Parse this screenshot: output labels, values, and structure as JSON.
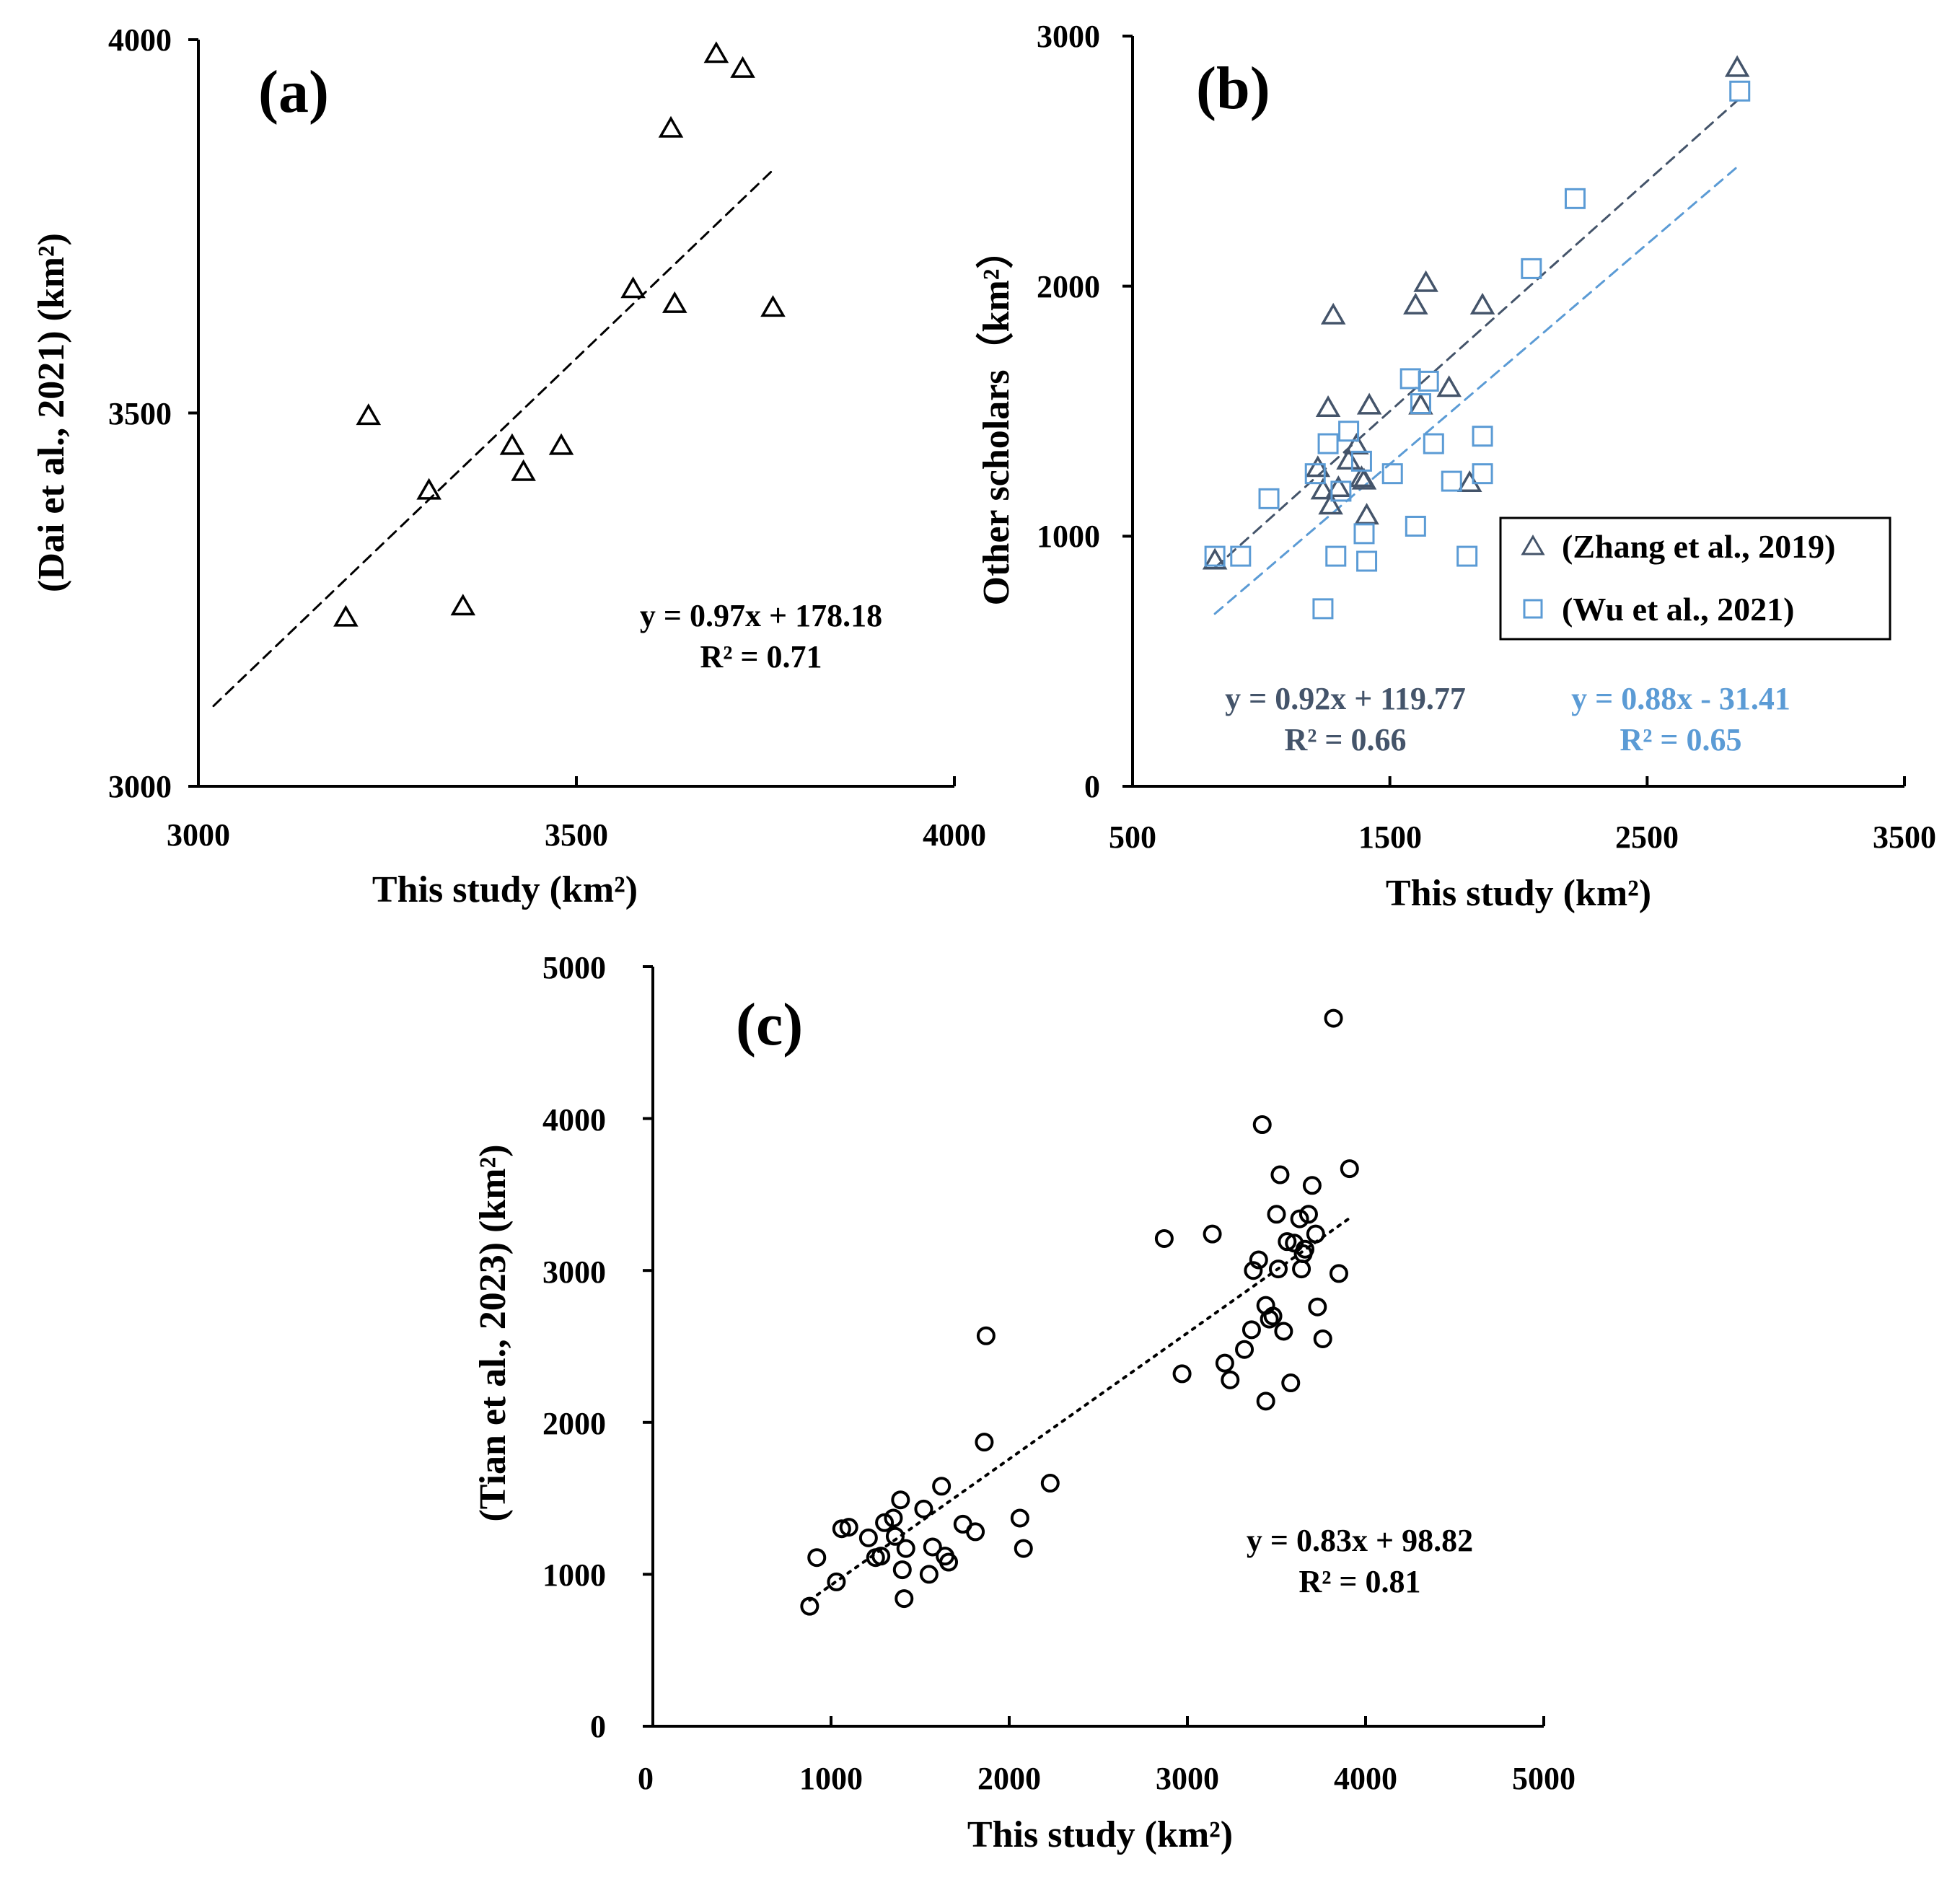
{
  "chart_data": [
    {
      "id": "a",
      "type": "scatter",
      "panel_label": "(a)",
      "xlabel": "This study (km²)",
      "ylabel": "(Dai et al., 2021) (km²)",
      "xlim": [
        3000,
        4000
      ],
      "ylim": [
        3000,
        4000
      ],
      "xticks": [
        "3000",
        "3500",
        "4000"
      ],
      "yticks": [
        "3000",
        "3500",
        "4000"
      ],
      "grid": false,
      "series": [
        {
          "name": "Dai et al., 2021",
          "marker": "triangle",
          "color": "#000000",
          "x": [
            3195,
            3225,
            3305,
            3350,
            3415,
            3430,
            3480,
            3575,
            3625,
            3630,
            3685,
            3720,
            3760
          ],
          "y": [
            3225,
            3495,
            3395,
            3240,
            3455,
            3420,
            3455,
            3665,
            3880,
            3645,
            3980,
            3960,
            3640
          ]
        }
      ],
      "trendline": {
        "x": [
          3020,
          3760
        ],
        "style": "dashed",
        "color": "#000000",
        "slope": 0.97,
        "intercept": 178.18
      },
      "equation": "y = 0.97x + 178.18",
      "r2": "R² = 0.71"
    },
    {
      "id": "b",
      "type": "scatter",
      "panel_label": "(b)",
      "xlabel": "This study (km²)",
      "ylabel": "Other scholars（km²）",
      "xlim": [
        500,
        3500
      ],
      "ylim": [
        0,
        3000
      ],
      "xticks": [
        "500",
        "1500",
        "2500",
        "3500"
      ],
      "yticks": [
        "0",
        "1000",
        "2000",
        "3000"
      ],
      "grid": false,
      "legend_position": "right",
      "series": [
        {
          "name": "(Zhang et al., 2019)",
          "marker": "triangle",
          "color": "#44546a",
          "x": [
            820,
            1220,
            1240,
            1260,
            1270,
            1280,
            1300,
            1340,
            1370,
            1390,
            1400,
            1410,
            1420,
            1600,
            1620,
            1640,
            1730,
            1810,
            1860,
            2850
          ],
          "y": [
            900,
            1270,
            1180,
            1510,
            1120,
            1880,
            1190,
            1300,
            1360,
            1230,
            1220,
            1080,
            1520,
            1920,
            1520,
            2010,
            1590,
            1210,
            1920,
            2870
          ]
        },
        {
          "name": "(Wu et al., 2021)",
          "marker": "square",
          "color": "#5b9bd5",
          "x": [
            820,
            920,
            1030,
            1210,
            1240,
            1260,
            1290,
            1310,
            1340,
            1390,
            1400,
            1410,
            1510,
            1580,
            1600,
            1620,
            1650,
            1670,
            1740,
            1800,
            1860,
            1860,
            2050,
            2220,
            2860
          ],
          "y": [
            920,
            920,
            1150,
            1250,
            710,
            1370,
            920,
            1180,
            1420,
            1300,
            1010,
            900,
            1250,
            1630,
            1040,
            1530,
            1620,
            1370,
            1220,
            920,
            1400,
            1250,
            2070,
            2350,
            2780
          ]
        }
      ],
      "trendlines": [
        {
          "series": "(Zhang et al., 2019)",
          "x": [
            820,
            2850
          ],
          "style": "dashed",
          "color": "#44546a",
          "slope": 0.92,
          "intercept": 119.77
        },
        {
          "series": "(Wu et al., 2021)",
          "x": [
            820,
            2850
          ],
          "style": "dashed",
          "color": "#5b9bd5",
          "slope": 0.88,
          "intercept": -31.41
        }
      ],
      "equation_1": "y = 0.92x + 119.77",
      "r2_1": "R² = 0.66",
      "equation_2": "y = 0.88x - 31.41",
      "r2_2": "R² = 0.65"
    },
    {
      "id": "c",
      "type": "scatter",
      "panel_label": "(c)",
      "xlabel": "This study (km²)",
      "ylabel": "(Tian et al., 2023) (km²)",
      "xlim": [
        0,
        5000
      ],
      "ylim": [
        0,
        5000
      ],
      "xticks": [
        "0",
        "1000",
        "2000",
        "3000",
        "4000",
        "5000"
      ],
      "yticks": [
        "0",
        "1000",
        "2000",
        "3000",
        "4000",
        "5000"
      ],
      "grid": false,
      "series": [
        {
          "name": "Tian et al., 2023",
          "marker": "circle",
          "color": "#000000",
          "x": [
            880,
            920,
            1030,
            1060,
            1100,
            1210,
            1250,
            1280,
            1300,
            1350,
            1360,
            1390,
            1400,
            1410,
            1420,
            1520,
            1550,
            1570,
            1620,
            1640,
            1660,
            1740,
            1810,
            1860,
            1870,
            2060,
            2080,
            2230,
            2870,
            2970,
            3140,
            3210,
            3240,
            3320,
            3360,
            3370,
            3400,
            3420,
            3440,
            3440,
            3460,
            3480,
            3500,
            3510,
            3520,
            3540,
            3560,
            3580,
            3600,
            3630,
            3640,
            3650,
            3660,
            3680,
            3700,
            3720,
            3730,
            3760,
            3820,
            3850,
            3910
          ],
          "y": [
            790,
            1110,
            950,
            1300,
            1310,
            1240,
            1110,
            1120,
            1340,
            1370,
            1250,
            1490,
            1030,
            840,
            1170,
            1430,
            1000,
            1180,
            1580,
            1120,
            1080,
            1330,
            1280,
            1870,
            2570,
            1370,
            1170,
            1600,
            3210,
            2320,
            3240,
            2390,
            2280,
            2480,
            2610,
            3000,
            3070,
            3960,
            2770,
            2140,
            2680,
            2700,
            3370,
            3010,
            3630,
            2600,
            3190,
            2260,
            3180,
            3340,
            3010,
            3110,
            3140,
            3370,
            3560,
            3240,
            2760,
            2550,
            4660,
            2980,
            3670
          ]
        }
      ],
      "trendline": {
        "x": [
          880,
          3910
        ],
        "style": "dotted",
        "color": "#000000",
        "slope": 0.83,
        "intercept": 98.82
      },
      "equation": "y = 0.83x + 98.82",
      "r2": "R² = 0.81"
    }
  ]
}
